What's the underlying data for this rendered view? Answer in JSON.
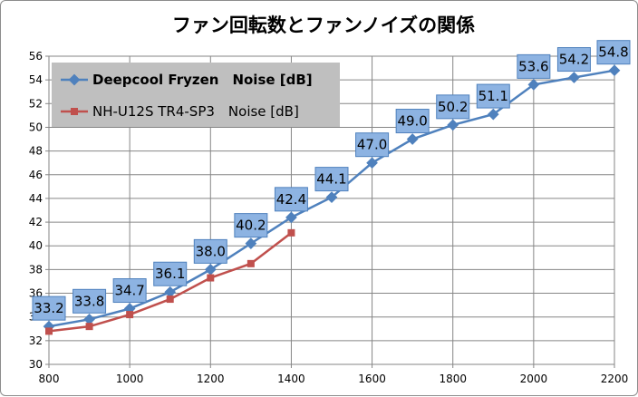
{
  "chart_data": {
    "type": "line",
    "title": "ファン回転数とファンノイズの関係",
    "xlabel": "",
    "ylabel": "",
    "xlim": [
      800,
      2200
    ],
    "ylim": [
      30,
      56
    ],
    "x_ticks": [
      800,
      1000,
      1200,
      1400,
      1600,
      1800,
      2000,
      2200
    ],
    "y_ticks": [
      30,
      32,
      34,
      36,
      38,
      40,
      42,
      44,
      46,
      48,
      50,
      52,
      54,
      56
    ],
    "grid": true,
    "legend_position": "top-left",
    "series": [
      {
        "name": "Deepcool Fryzen　Noise [dB]",
        "legend_bold": true,
        "color": "#4F81BD",
        "marker": "diamond",
        "x": [
          800,
          900,
          1000,
          1100,
          1200,
          1300,
          1400,
          1500,
          1600,
          1700,
          1800,
          1900,
          2000,
          2100,
          2200
        ],
        "y": [
          33.2,
          33.8,
          34.7,
          36.1,
          38.0,
          40.2,
          42.4,
          44.1,
          47.0,
          49.0,
          50.2,
          51.1,
          53.6,
          54.2,
          54.8
        ],
        "labels": [
          "33.2",
          "33.8",
          "34.7",
          "36.1",
          "38.0",
          "40.2",
          "42.4",
          "44.1",
          "47.0",
          "49.0",
          "50.2",
          "51.1",
          "53.6",
          "54.2",
          "54.8"
        ]
      },
      {
        "name": "NH-U12S TR4-SP3　Noise [dB]",
        "legend_bold": false,
        "color": "#C0504D",
        "marker": "square",
        "x": [
          800,
          900,
          1000,
          1100,
          1200,
          1300,
          1400
        ],
        "y": [
          32.8,
          33.2,
          34.2,
          35.5,
          37.3,
          38.5,
          41.1
        ]
      }
    ]
  }
}
